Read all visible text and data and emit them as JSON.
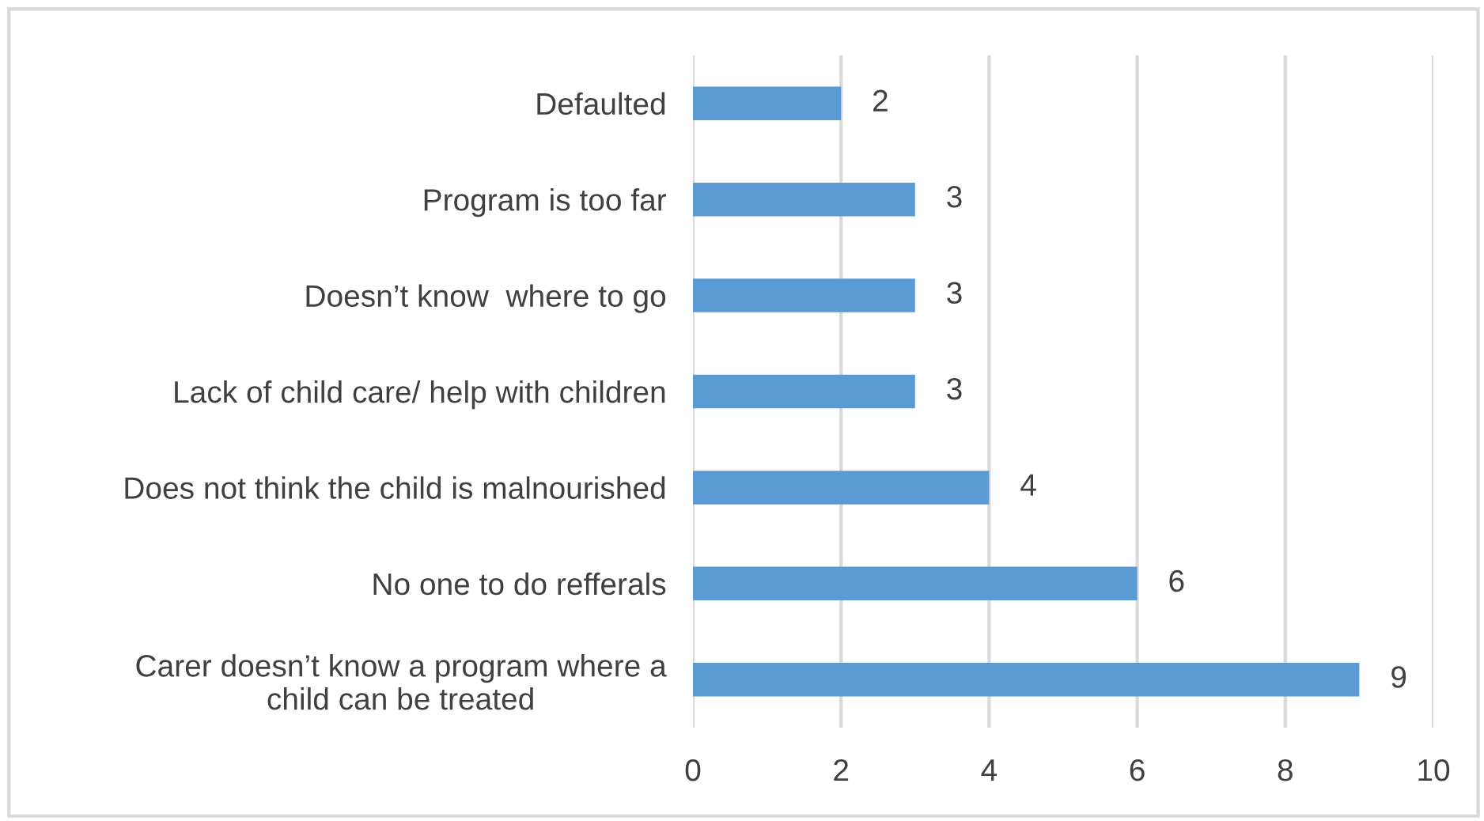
{
  "chart_data": {
    "type": "bar",
    "orientation": "horizontal",
    "categories": [
      "Defaulted",
      "Program is too far",
      "Doesn’t know  where to go",
      "Lack of child care/ help with children",
      "Does not think the child is malnourished",
      "No one to do refferals",
      "Carer doesn’t know a program where a\nchild can be treated"
    ],
    "values": [
      2,
      3,
      3,
      3,
      4,
      6,
      9
    ],
    "color": "#5b9bd5",
    "xlim": [
      0,
      10
    ],
    "xticks": [
      0,
      2,
      4,
      6,
      8,
      10
    ],
    "grid": "x",
    "data_labels": true
  }
}
